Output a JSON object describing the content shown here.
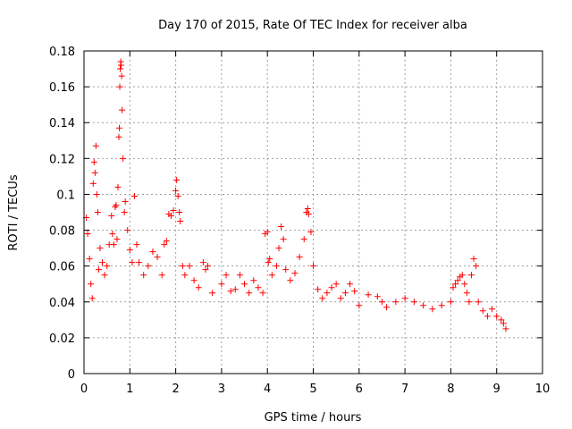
{
  "chart_data": {
    "type": "scatter",
    "title": "Day 170 of 2015, Rate Of TEC Index for receiver alba",
    "xlabel": "GPS time / hours",
    "ylabel": "ROTI / TECUs",
    "xlim": [
      0,
      10
    ],
    "ylim": [
      0,
      0.18
    ],
    "xticks": [
      "0",
      "1",
      "2",
      "3",
      "4",
      "5",
      "6",
      "7",
      "8",
      "9",
      "10"
    ],
    "yticks": [
      "0",
      "0.02",
      "0.04",
      "0.06",
      "0.08",
      "0.1",
      "0.12",
      "0.14",
      "0.16",
      "0.18"
    ],
    "grid": true,
    "marker": "+",
    "color": "#ff0000",
    "series": [
      {
        "name": "ROTI",
        "points": [
          [
            0.05,
            0.087
          ],
          [
            0.08,
            0.078
          ],
          [
            0.12,
            0.064
          ],
          [
            0.15,
            0.05
          ],
          [
            0.18,
            0.042
          ],
          [
            0.2,
            0.106
          ],
          [
            0.22,
            0.118
          ],
          [
            0.24,
            0.112
          ],
          [
            0.26,
            0.127
          ],
          [
            0.28,
            0.1
          ],
          [
            0.3,
            0.09
          ],
          [
            0.32,
            0.058
          ],
          [
            0.35,
            0.07
          ],
          [
            0.4,
            0.062
          ],
          [
            0.45,
            0.055
          ],
          [
            0.5,
            0.06
          ],
          [
            0.55,
            0.072
          ],
          [
            0.6,
            0.088
          ],
          [
            0.62,
            0.078
          ],
          [
            0.65,
            0.072
          ],
          [
            0.68,
            0.093
          ],
          [
            0.7,
            0.094
          ],
          [
            0.72,
            0.075
          ],
          [
            0.74,
            0.104
          ],
          [
            0.76,
            0.132
          ],
          [
            0.77,
            0.137
          ],
          [
            0.78,
            0.16
          ],
          [
            0.79,
            0.17
          ],
          [
            0.8,
            0.174
          ],
          [
            0.81,
            0.172
          ],
          [
            0.82,
            0.166
          ],
          [
            0.83,
            0.147
          ],
          [
            0.85,
            0.12
          ],
          [
            0.88,
            0.09
          ],
          [
            0.9,
            0.096
          ],
          [
            0.95,
            0.08
          ],
          [
            1.0,
            0.069
          ],
          [
            1.05,
            0.062
          ],
          [
            1.1,
            0.099
          ],
          [
            1.15,
            0.072
          ],
          [
            1.2,
            0.062
          ],
          [
            1.3,
            0.055
          ],
          [
            1.4,
            0.06
          ],
          [
            1.5,
            0.068
          ],
          [
            1.6,
            0.065
          ],
          [
            1.7,
            0.055
          ],
          [
            1.75,
            0.072
          ],
          [
            1.8,
            0.074
          ],
          [
            1.85,
            0.089
          ],
          [
            1.9,
            0.088
          ],
          [
            1.95,
            0.091
          ],
          [
            2.0,
            0.102
          ],
          [
            2.02,
            0.108
          ],
          [
            2.05,
            0.099
          ],
          [
            2.08,
            0.09
          ],
          [
            2.1,
            0.085
          ],
          [
            2.15,
            0.06
          ],
          [
            2.2,
            0.055
          ],
          [
            2.3,
            0.06
          ],
          [
            2.4,
            0.052
          ],
          [
            2.5,
            0.048
          ],
          [
            2.6,
            0.062
          ],
          [
            2.65,
            0.058
          ],
          [
            2.7,
            0.06
          ],
          [
            2.8,
            0.045
          ],
          [
            3.0,
            0.05
          ],
          [
            3.1,
            0.055
          ],
          [
            3.2,
            0.046
          ],
          [
            3.3,
            0.047
          ],
          [
            3.4,
            0.055
          ],
          [
            3.5,
            0.05
          ],
          [
            3.6,
            0.045
          ],
          [
            3.7,
            0.052
          ],
          [
            3.8,
            0.048
          ],
          [
            3.9,
            0.045
          ],
          [
            3.95,
            0.078
          ],
          [
            4.0,
            0.079
          ],
          [
            4.02,
            0.062
          ],
          [
            4.05,
            0.064
          ],
          [
            4.1,
            0.055
          ],
          [
            4.2,
            0.06
          ],
          [
            4.25,
            0.07
          ],
          [
            4.3,
            0.082
          ],
          [
            4.35,
            0.075
          ],
          [
            4.4,
            0.058
          ],
          [
            4.5,
            0.052
          ],
          [
            4.6,
            0.056
          ],
          [
            4.7,
            0.065
          ],
          [
            4.8,
            0.075
          ],
          [
            4.85,
            0.09
          ],
          [
            4.88,
            0.092
          ],
          [
            4.9,
            0.089
          ],
          [
            4.95,
            0.079
          ],
          [
            5.0,
            0.06
          ],
          [
            5.1,
            0.047
          ],
          [
            5.2,
            0.042
          ],
          [
            5.3,
            0.045
          ],
          [
            5.4,
            0.048
          ],
          [
            5.5,
            0.05
          ],
          [
            5.6,
            0.042
          ],
          [
            5.7,
            0.045
          ],
          [
            5.8,
            0.05
          ],
          [
            5.9,
            0.046
          ],
          [
            6.0,
            0.038
          ],
          [
            6.2,
            0.044
          ],
          [
            6.4,
            0.043
          ],
          [
            6.5,
            0.04
          ],
          [
            6.6,
            0.037
          ],
          [
            6.8,
            0.04
          ],
          [
            7.0,
            0.042
          ],
          [
            7.2,
            0.04
          ],
          [
            7.4,
            0.038
          ],
          [
            7.6,
            0.036
          ],
          [
            7.8,
            0.038
          ],
          [
            8.0,
            0.04
          ],
          [
            8.05,
            0.048
          ],
          [
            8.1,
            0.05
          ],
          [
            8.15,
            0.052
          ],
          [
            8.2,
            0.054
          ],
          [
            8.25,
            0.055
          ],
          [
            8.3,
            0.05
          ],
          [
            8.35,
            0.045
          ],
          [
            8.4,
            0.04
          ],
          [
            8.45,
            0.055
          ],
          [
            8.5,
            0.064
          ],
          [
            8.55,
            0.06
          ],
          [
            8.6,
            0.04
          ],
          [
            8.7,
            0.035
          ],
          [
            8.8,
            0.032
          ],
          [
            8.9,
            0.036
          ],
          [
            9.0,
            0.032
          ],
          [
            9.1,
            0.03
          ],
          [
            9.15,
            0.028
          ],
          [
            9.2,
            0.025
          ]
        ]
      }
    ]
  }
}
